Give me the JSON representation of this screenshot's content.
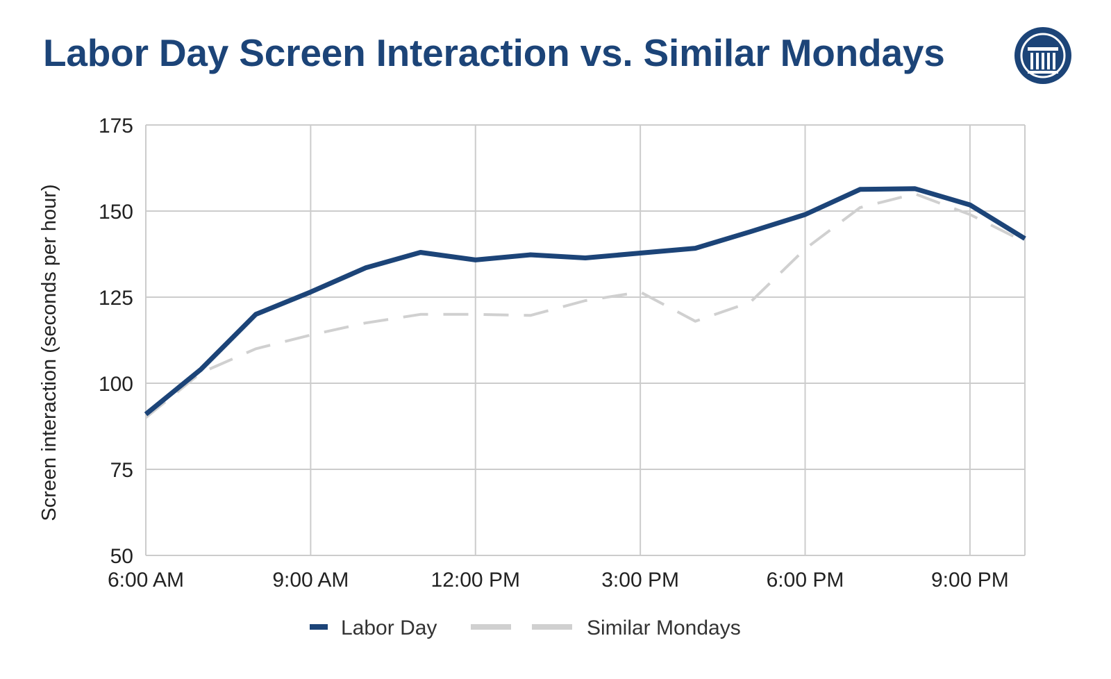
{
  "chart_data": {
    "type": "line",
    "title": "Labor Day Screen Interaction vs. Similar Mondays",
    "ylabel": "Screen interaction (seconds per hour)",
    "xlabel": "",
    "x": [
      "6:00 AM",
      "7:00 AM",
      "8:00 AM",
      "9:00 AM",
      "10:00 AM",
      "11:00 AM",
      "12:00 PM",
      "1:00 PM",
      "2:00 PM",
      "3:00 PM",
      "4:00 PM",
      "5:00 PM",
      "6:00 PM",
      "7:00 PM",
      "8:00 PM",
      "9:00 PM",
      "10:00 PM"
    ],
    "xticks": [
      "6:00 AM",
      "9:00 AM",
      "12:00 PM",
      "3:00 PM",
      "6:00 PM",
      "9:00 PM"
    ],
    "yticks": [
      50,
      75,
      100,
      125,
      150,
      175
    ],
    "ylim": [
      50,
      175
    ],
    "grid": true,
    "legend_position": "bottom",
    "series": [
      {
        "name": "Labor Day",
        "style": "solid",
        "color": "#1c4478",
        "values": [
          91,
          104,
          120,
          126.5,
          133.5,
          138,
          135.8,
          137.3,
          136.4,
          137.8,
          139.2,
          144,
          149,
          156.3,
          156.5,
          151.8,
          142
        ]
      },
      {
        "name": "Similar Mondays",
        "style": "dashed",
        "color": "#d0d0d0",
        "values": [
          90,
          103,
          110,
          114,
          117.5,
          120,
          120,
          119.7,
          124,
          126.5,
          118,
          123.5,
          139,
          151,
          155,
          149,
          141
        ]
      }
    ]
  },
  "logo": {
    "name": "columns-seal-icon",
    "color": "#1c4478"
  }
}
